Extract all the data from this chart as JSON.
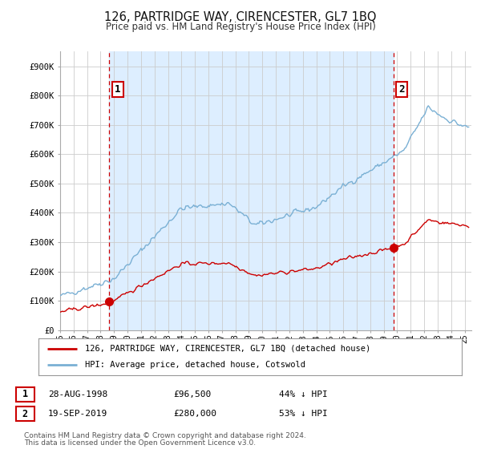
{
  "title": "126, PARTRIDGE WAY, CIRENCESTER, GL7 1BQ",
  "subtitle": "Price paid vs. HM Land Registry's House Price Index (HPI)",
  "sale1_date": "28-AUG-1998",
  "sale1_price": 96500,
  "sale1_year": 1998.65,
  "sale2_date": "19-SEP-2019",
  "sale2_price": 280000,
  "sale2_year": 2019.72,
  "legend_line1": "126, PARTRIDGE WAY, CIRENCESTER, GL7 1BQ (detached house)",
  "legend_line2": "HPI: Average price, detached house, Cotswold",
  "footnote1": "Contains HM Land Registry data © Crown copyright and database right 2024.",
  "footnote2": "This data is licensed under the Open Government Licence v3.0.",
  "line_color_property": "#cc0000",
  "line_color_hpi": "#7ab0d4",
  "vline_color": "#cc0000",
  "shade_color": "#ddeeff",
  "background_color": "#ffffff",
  "grid_color": "#cccccc",
  "ylim": [
    0,
    950000
  ],
  "xlim_start": 1995.0,
  "xlim_end": 2025.5
}
